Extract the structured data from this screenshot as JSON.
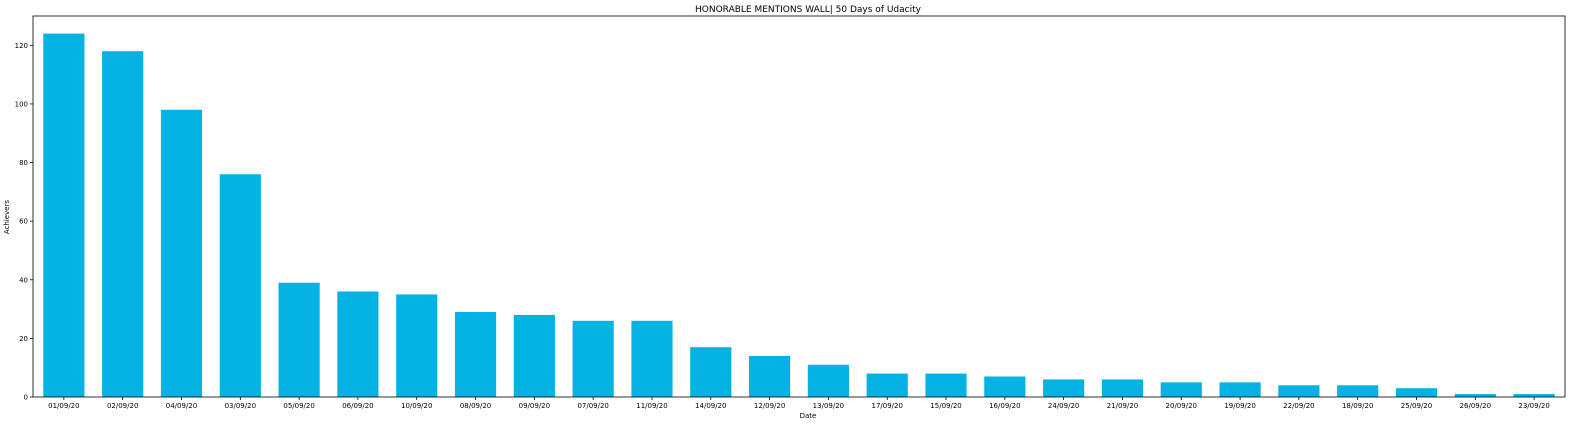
{
  "chart_data": {
    "type": "bar",
    "title": "HONORABLE MENTIONS WALL| 50 Days of Udacity",
    "xlabel": "Date",
    "ylabel": "Achievers",
    "categories": [
      "01/09/20",
      "02/09/20",
      "04/09/20",
      "03/09/20",
      "05/09/20",
      "06/09/20",
      "10/09/20",
      "08/09/20",
      "09/09/20",
      "07/09/20",
      "11/09/20",
      "14/09/20",
      "12/09/20",
      "13/09/20",
      "17/09/20",
      "15/09/20",
      "16/09/20",
      "24/09/20",
      "21/09/20",
      "20/09/20",
      "19/09/20",
      "22/09/20",
      "18/09/20",
      "25/09/20",
      "26/09/20",
      "23/09/20"
    ],
    "values": [
      124,
      118,
      98,
      76,
      39,
      36,
      35,
      29,
      28,
      26,
      26,
      17,
      14,
      11,
      8,
      8,
      7,
      6,
      6,
      5,
      5,
      4,
      4,
      3,
      1,
      1
    ],
    "ylim": [
      0,
      130
    ],
    "yticks": [
      0,
      20,
      40,
      60,
      80,
      100,
      120
    ],
    "grid": false,
    "bar_color": "#05b2e4"
  }
}
